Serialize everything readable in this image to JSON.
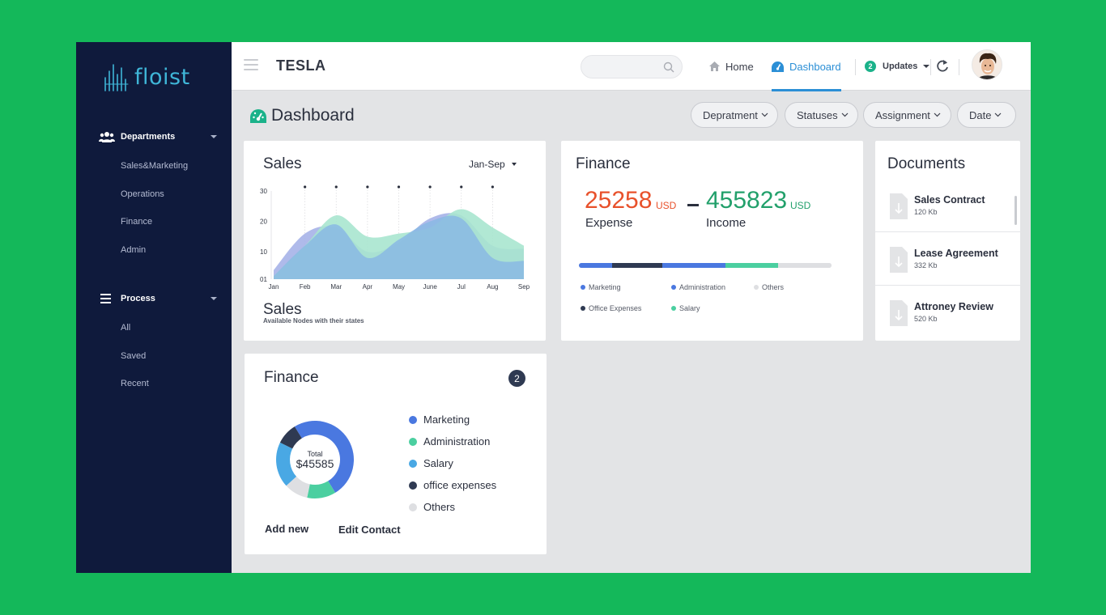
{
  "app": {
    "logo_text": "floist",
    "company": "TESLA"
  },
  "sidebar": {
    "sections": [
      {
        "label": "Departments",
        "icon": "users-icon",
        "items": [
          "Sales&Marketing",
          "Operations",
          "Finance",
          "Admin"
        ]
      },
      {
        "label": "Process",
        "icon": "list-icon",
        "items": [
          "All",
          "Saved",
          "Recent"
        ]
      }
    ]
  },
  "topbar": {
    "search_placeholder": "",
    "nav": [
      {
        "label": "Home",
        "icon": "home-icon",
        "active": false
      },
      {
        "label": "Dashboard",
        "icon": "dashboard-icon",
        "active": true
      }
    ],
    "updates_label": "Updates",
    "updates_count": "2"
  },
  "page": {
    "title": "Dashboard",
    "filters": [
      "Depratment",
      "Statuses",
      "Assignment",
      "Date"
    ]
  },
  "colors": {
    "marketing": "#4a78e0",
    "administration": "#4bcfa0",
    "salary": "#49a8e4",
    "office_expenses": "#2f3a52",
    "others": "#dedfe2",
    "expense": "#e8512b",
    "income": "#22a06b",
    "sidebar": "#0f1a3c",
    "accent": "#2b8fd6"
  },
  "sales_card": {
    "title": "Sales",
    "range": "Jan-Sep",
    "subtitle": "Sales",
    "description": "Available Nodes with their states"
  },
  "chart_data": {
    "type": "area",
    "categories": [
      "Jan",
      "Feb",
      "Mar",
      "Apr",
      "May",
      "June",
      "Jul",
      "Aug",
      "Sep"
    ],
    "y_ticks": [
      "30",
      "20",
      "10",
      "01"
    ],
    "ylim": [
      1,
      30
    ],
    "series": [
      {
        "color": "#a6b3e8",
        "values": [
          4,
          16,
          18,
          10,
          13,
          21,
          22,
          12,
          11
        ]
      },
      {
        "color": "#a9e6cf",
        "values": [
          2,
          12,
          22,
          15,
          16,
          18,
          24,
          18,
          12
        ]
      },
      {
        "color": "#8ab8e4",
        "values": [
          2,
          12,
          19,
          8,
          14,
          20,
          21,
          8,
          7
        ]
      }
    ]
  },
  "finance_summary": {
    "title": "Finance",
    "expense_value": "25258",
    "expense_unit": "USD",
    "expense_label": "Expense",
    "income_value": "455823",
    "income_unit": "USD",
    "income_label": "Income",
    "segments": [
      {
        "name": "Marketing",
        "percent": 13
      },
      {
        "name": "Office Expenses",
        "percent": 20
      },
      {
        "name": "Administration",
        "percent": 25
      },
      {
        "name": "Salary",
        "percent": 21
      },
      {
        "name": "Others",
        "percent": 21
      }
    ],
    "legend": [
      "Marketing",
      "Administration",
      "Others",
      "Office Expenses",
      "Salary"
    ]
  },
  "documents": {
    "title": "Documents",
    "items": [
      {
        "name": "Sales Contract",
        "size": "120 Kb"
      },
      {
        "name": "Lease Agreement",
        "size": "332 Kb"
      },
      {
        "name": "Attroney Review",
        "size": "520 Kb"
      }
    ]
  },
  "finance_donut": {
    "title": "Finance",
    "count": "2",
    "total_label": "Total",
    "total_value": "$45585",
    "legend": [
      "Marketing",
      "Administration",
      "Salary",
      "office expenses",
      "Others"
    ],
    "slices": [
      {
        "name": "Marketing",
        "value": 50
      },
      {
        "name": "Administration",
        "value": 12
      },
      {
        "name": "Others",
        "value": 10
      },
      {
        "name": "Salary",
        "value": 19
      },
      {
        "name": "office expenses",
        "value": 9
      }
    ],
    "add_new": "Add new",
    "edit_contact": "Edit Contact"
  }
}
